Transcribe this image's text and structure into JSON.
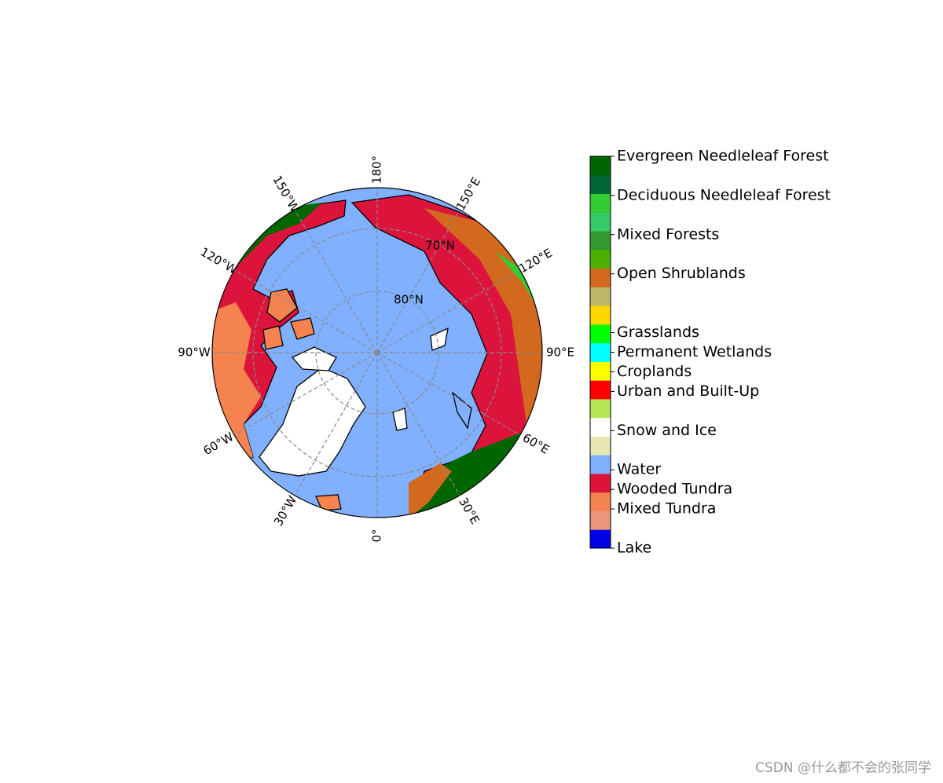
{
  "map": {
    "meridian_labels": [
      "0°",
      "30°E",
      "60°E",
      "90°E",
      "120°E",
      "150°E",
      "180°",
      "150°W",
      "120°W",
      "90°W",
      "60°W",
      "30°W"
    ],
    "parallel_labels": [
      "80°N",
      "70°N"
    ],
    "colorbar": {
      "colors": [
        "#0000e6",
        "#e9967a",
        "#f4834f",
        "#dc143c",
        "#80b0ff",
        "#e8e8b4",
        "#ffffff",
        "#b5e655",
        "#ff0000",
        "#ffff00",
        "#00ffff",
        "#00ff00",
        "#ffd700",
        "#bdb76b",
        "#d2691e",
        "#4cb000",
        "#339933",
        "#33cc66",
        "#33cc33",
        "#006633",
        "#006600"
      ],
      "range": [
        0,
        20
      ],
      "ticks": [
        {
          "value": 0,
          "label": "Lake"
        },
        {
          "value": 2,
          "label": "Mixed Tundra"
        },
        {
          "value": 3,
          "label": "Wooded Tundra"
        },
        {
          "value": 4,
          "label": "Water"
        },
        {
          "value": 6,
          "label": "Snow and Ice"
        },
        {
          "value": 8,
          "label": "Urban and Built-Up"
        },
        {
          "value": 9,
          "label": "Croplands"
        },
        {
          "value": 10,
          "label": "Permanent Wetlands"
        },
        {
          "value": 11,
          "label": "Grasslands"
        },
        {
          "value": 14,
          "label": "Open Shrublands"
        },
        {
          "value": 16,
          "label": "Mixed Forests"
        },
        {
          "value": 18,
          "label": "Deciduous Needleleaf Forest"
        },
        {
          "value": 20,
          "label": "Evergreen Needleleaf Forest"
        }
      ]
    }
  },
  "watermark": "CSDN @什么都不会的张同学"
}
